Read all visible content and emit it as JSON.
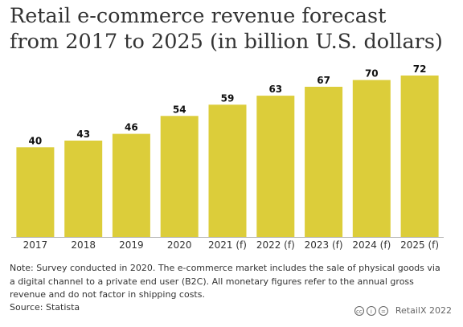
{
  "title_lines": [
    "Retail e-commerce revenue forecast",
    "from 2017 to 2025 (in billion U.S. dollars)"
  ],
  "note": "Note: Survey conducted in 2020. The e-commerce market includes the sale of physical goods via a digital channel to a private end user (B2C). All monetary figures refer to the annual gross revenue and do not factor in shipping costs.",
  "source": "Source: Statista",
  "footer": {
    "license_icons": [
      "cc",
      "i",
      "="
    ],
    "brand": "RetailX 2022"
  },
  "colors": {
    "bar": "#dccd3a",
    "axis": "#bbbbbb"
  },
  "chart_data": {
    "type": "bar",
    "title": "Retail e-commerce revenue forecast from 2017 to 2025 (in billion U.S. dollars)",
    "categories": [
      "2017",
      "2018",
      "2019",
      "2020",
      "2021 (f)",
      "2022 (f)",
      "2023 (f)",
      "2024 (f)",
      "2025 (f)"
    ],
    "values": [
      40,
      43,
      46,
      54,
      59,
      63,
      67,
      70,
      72
    ],
    "xlabel": "",
    "ylabel": "",
    "ylim": [
      0,
      72
    ],
    "grid": false,
    "legend": "none",
    "data_labels": true
  }
}
